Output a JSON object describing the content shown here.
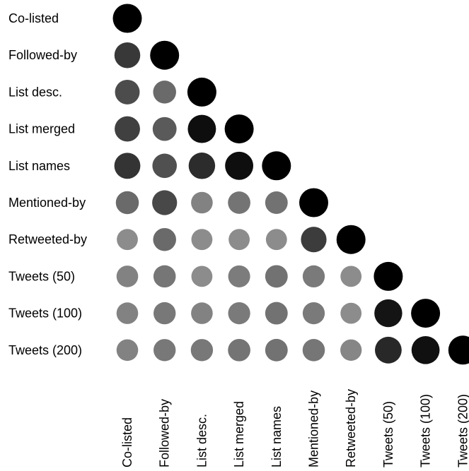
{
  "chart_data": {
    "type": "heatmap",
    "title": "",
    "xlabel": "",
    "ylabel": "",
    "layout": "lower-triangle",
    "marker": "circle",
    "value_range": [
      0,
      1
    ],
    "grid": false,
    "legend": "none",
    "color_low": "#c8c8c8",
    "color_high": "#000000",
    "row_labels": [
      "Co-listed",
      "Followed-by",
      "List desc.",
      "List merged",
      "List names",
      "Mentioned-by",
      "Retweeted-by",
      "Tweets (50)",
      "Tweets (100)",
      "Tweets (200)"
    ],
    "col_labels": [
      "Co-listed",
      "Followed-by",
      "List desc.",
      "List merged",
      "List names",
      "Mentioned-by",
      "Retweeted-by",
      "Tweets (50)",
      "Tweets (100)",
      "Tweets (200)"
    ],
    "values": [
      [
        1.0
      ],
      [
        0.72,
        1.0
      ],
      [
        0.62,
        0.47,
        1.0
      ],
      [
        0.68,
        0.55,
        0.93,
        1.0
      ],
      [
        0.74,
        0.6,
        0.78,
        0.93,
        1.0
      ],
      [
        0.47,
        0.64,
        0.35,
        0.42,
        0.43,
        1.0
      ],
      [
        0.3,
        0.47,
        0.3,
        0.3,
        0.3,
        0.7,
        1.0
      ],
      [
        0.35,
        0.41,
        0.3,
        0.38,
        0.43,
        0.39,
        0.3,
        1.0
      ],
      [
        0.35,
        0.4,
        0.35,
        0.39,
        0.43,
        0.39,
        0.3,
        0.9,
        1.0
      ],
      [
        0.35,
        0.4,
        0.4,
        0.42,
        0.43,
        0.41,
        0.33,
        0.8,
        0.92,
        1.0
      ]
    ]
  }
}
